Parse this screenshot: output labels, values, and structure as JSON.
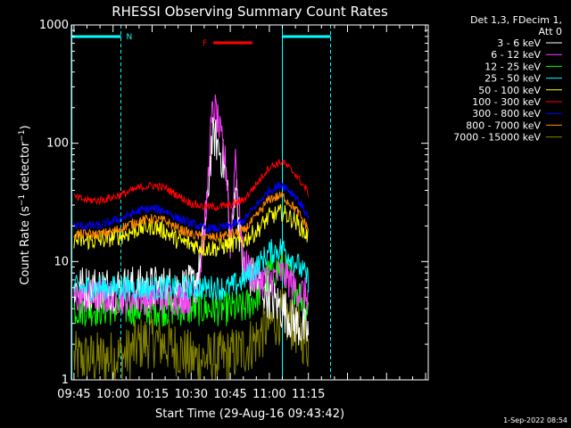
{
  "chart_data": {
    "type": "line",
    "title": "RHESSI Observing Summary Count Rates",
    "xlabel": "Start Time (29-Aug-16 09:43:42)",
    "ylabel": "Count Rate (s⁻¹ detector⁻¹)",
    "ylabel_parts": {
      "a": "Count Rate (s",
      "sup1": "−1",
      "b": " detector",
      "sup2": "−1",
      "c": ")"
    },
    "ylog": true,
    "ylim": [
      1,
      1000
    ],
    "xlim": [
      584,
      721
    ],
    "y_ticks": [
      {
        "v": 1,
        "label": "1"
      },
      {
        "v": 10,
        "label": "10"
      },
      {
        "v": 100,
        "label": "100"
      },
      {
        "v": 1000,
        "label": "1000"
      }
    ],
    "x_ticks": [
      {
        "t": 585,
        "label": "09:45"
      },
      {
        "t": 600,
        "label": "10:00"
      },
      {
        "t": 615,
        "label": "10:15"
      },
      {
        "t": 630,
        "label": "10:30"
      },
      {
        "t": 645,
        "label": "10:45"
      },
      {
        "t": 660,
        "label": "11:00"
      },
      {
        "t": 675,
        "label": "11:15"
      }
    ],
    "legend_header": [
      "Det 1,3, FDecim 1,",
      "Att 0"
    ],
    "series": [
      {
        "name": "3 - 6 keV",
        "color": "#ffffff",
        "x": [
          585,
          590,
          595,
          600,
          605,
          610,
          615,
          620,
          625,
          630,
          633,
          636,
          637,
          638,
          639,
          640,
          641,
          642,
          643,
          644,
          645,
          646,
          647,
          648,
          650,
          655,
          660,
          665,
          670,
          675
        ],
        "y": [
          6,
          6,
          6,
          6,
          6,
          6,
          6,
          6,
          6,
          6,
          8,
          25,
          60,
          105,
          115,
          100,
          85,
          75,
          60,
          40,
          12,
          20,
          55,
          25,
          8,
          7,
          5,
          4,
          3,
          2.5
        ]
      },
      {
        "name": "6 - 12 keV",
        "color": "#ff3cff",
        "x": [
          585,
          590,
          595,
          600,
          605,
          610,
          615,
          620,
          625,
          630,
          633,
          636,
          637,
          638,
          639,
          640,
          641,
          642,
          643,
          644,
          645,
          646,
          647,
          648,
          650,
          655,
          660,
          665,
          670,
          675
        ],
        "y": [
          5,
          5,
          5,
          5,
          5,
          5,
          5,
          5,
          5,
          5,
          7,
          30,
          90,
          170,
          200,
          165,
          120,
          95,
          70,
          45,
          14,
          30,
          85,
          35,
          10,
          7,
          7,
          8,
          6,
          5
        ]
      },
      {
        "name": "12 - 25 keV",
        "color": "#00ff00",
        "x": [
          585,
          595,
          605,
          615,
          625,
          635,
          640,
          645,
          650,
          655,
          660,
          665,
          670,
          675
        ],
        "y": [
          4,
          4,
          4,
          4,
          4,
          4,
          4,
          4,
          4,
          5,
          8,
          9,
          6,
          4
        ]
      },
      {
        "name": "25 - 50 keV",
        "color": "#00ffff",
        "x": [
          585,
          595,
          605,
          615,
          625,
          635,
          640,
          645,
          650,
          655,
          660,
          665,
          670,
          675
        ],
        "y": [
          6,
          6,
          6,
          6,
          6,
          6,
          6,
          6,
          7,
          9,
          12,
          13,
          10,
          7
        ]
      },
      {
        "name": "50 - 100 keV",
        "color": "#ffff00",
        "x": [
          585,
          590,
          595,
          600,
          605,
          610,
          615,
          620,
          625,
          630,
          635,
          640,
          645,
          650,
          655,
          660,
          665,
          670,
          675
        ],
        "y": [
          15,
          15,
          15,
          16,
          17,
          19,
          20,
          18,
          15,
          14,
          13,
          13,
          14,
          15,
          18,
          24,
          26,
          22,
          16
        ]
      },
      {
        "name": "100 - 300 keV",
        "color": "#ff0000",
        "x": [
          585,
          590,
          595,
          600,
          605,
          610,
          615,
          620,
          625,
          630,
          635,
          640,
          645,
          650,
          655,
          660,
          665,
          670,
          675
        ],
        "y": [
          35,
          33,
          33,
          35,
          38,
          42,
          44,
          42,
          36,
          31,
          29,
          29,
          30,
          33,
          45,
          63,
          70,
          55,
          38
        ]
      },
      {
        "name": "300 - 800 keV",
        "color": "#0000ff",
        "x": [
          585,
          590,
          595,
          600,
          605,
          610,
          615,
          620,
          625,
          630,
          635,
          640,
          645,
          650,
          655,
          660,
          665,
          670,
          675
        ],
        "y": [
          20,
          20,
          20,
          22,
          24,
          27,
          28,
          27,
          23,
          21,
          19,
          19,
          20,
          22,
          30,
          40,
          45,
          36,
          24
        ]
      },
      {
        "name": "800 - 7000 keV",
        "color": "#ff8800",
        "x": [
          585,
          590,
          595,
          600,
          605,
          610,
          615,
          620,
          625,
          630,
          635,
          640,
          645,
          650,
          655,
          660,
          665,
          670,
          675
        ],
        "y": [
          17,
          17,
          17,
          18,
          20,
          22,
          23,
          22,
          19,
          17,
          16,
          16,
          17,
          18,
          24,
          34,
          36,
          28,
          19
        ]
      },
      {
        "name": "7000 - 15000 keV",
        "color": "#808000",
        "x": [
          585,
          595,
          605,
          610,
          615,
          620,
          625,
          630,
          635,
          640,
          645,
          650,
          655,
          660,
          665,
          670,
          675
        ],
        "y": [
          1.5,
          1.5,
          1.6,
          2,
          2.2,
          2,
          1.8,
          1.5,
          1.5,
          1.5,
          1.6,
          1.8,
          2.2,
          3,
          3.5,
          2.8,
          2
        ]
      }
    ],
    "annotations": {
      "saa_label": "N",
      "flare_label": "F"
    },
    "grid": false
  },
  "footer_timestamp": "1-Sep-2022 08:54"
}
